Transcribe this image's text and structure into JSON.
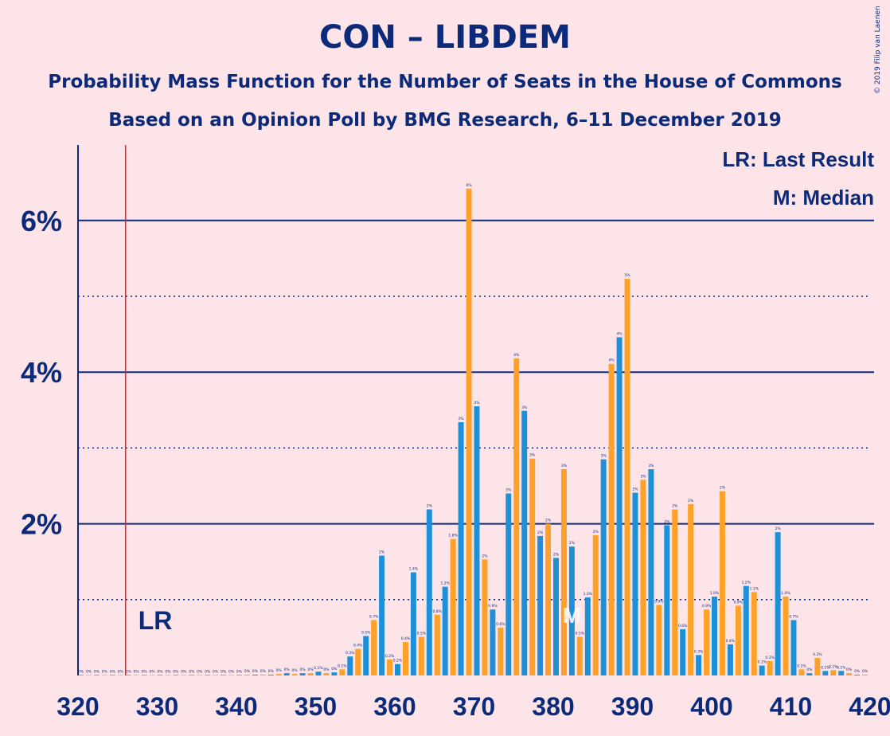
{
  "title": "CON – LIBDEM",
  "subtitle": "Probability Mass Function for the Number of Seats in the House of Commons",
  "subtitle2": "Based on an Opinion Poll by BMG Research, 6–11 December 2019",
  "copyright": "© 2019 Filip van Laenen",
  "legend": {
    "lr": "LR: Last Result",
    "m": "M: Median"
  },
  "markers": {
    "last_result_label": "LR",
    "median_label": "M"
  },
  "colors": {
    "blue": "#1e90d8",
    "orange": "#ffa028",
    "axis": "#0c2a7a",
    "lr_line": "#e8202c",
    "background": "#fde4e8"
  },
  "chart_data": {
    "type": "bar",
    "xlim": [
      320,
      420
    ],
    "ylim": [
      0,
      7
    ],
    "x_ticks": [
      320,
      330,
      340,
      350,
      360,
      370,
      380,
      390,
      400,
      410,
      420
    ],
    "y_ticks": [
      {
        "value": 2,
        "label": "2%"
      },
      {
        "value": 4,
        "label": "4%"
      },
      {
        "value": 6,
        "label": "6%"
      }
    ],
    "minor_gridlines": [
      1,
      3,
      5
    ],
    "last_result": 326,
    "median": 382,
    "x": [
      320,
      321,
      322,
      323,
      324,
      325,
      326,
      327,
      328,
      329,
      330,
      331,
      332,
      333,
      334,
      335,
      336,
      337,
      338,
      339,
      340,
      341,
      342,
      343,
      344,
      345,
      346,
      347,
      348,
      349,
      350,
      351,
      352,
      353,
      354,
      355,
      356,
      357,
      358,
      359,
      360,
      361,
      362,
      363,
      364,
      365,
      366,
      367,
      368,
      369,
      370,
      371,
      372,
      373,
      374,
      375,
      376,
      377,
      378,
      379,
      380,
      381,
      382,
      383,
      384,
      385,
      386,
      387,
      388,
      389,
      390,
      391,
      392,
      393,
      394,
      395,
      396,
      397,
      398,
      399,
      400,
      401,
      402,
      403,
      404,
      405,
      406,
      407,
      408,
      409,
      410,
      411,
      412,
      413,
      414,
      415,
      416,
      417,
      418,
      419
    ],
    "values": [
      0,
      0,
      0,
      0,
      0,
      0,
      0,
      0,
      0,
      0,
      0,
      0,
      0,
      0,
      0,
      0,
      0,
      0,
      0,
      0,
      0,
      0.01,
      0.01,
      0.01,
      0.01,
      0.02,
      0.03,
      0.02,
      0.03,
      0.03,
      0.05,
      0.03,
      0.04,
      0.08,
      0.25,
      0.35,
      0.52,
      0.73,
      1.58,
      0.21,
      0.15,
      0.44,
      1.36,
      0.51,
      2.19,
      0.8,
      1.17,
      1.8,
      3.34,
      6.42,
      3.55,
      1.53,
      0.87,
      0.63,
      2.4,
      4.18,
      3.49,
      2.86,
      1.84,
      2.0,
      1.55,
      2.72,
      1.7,
      0.51,
      1.03,
      1.85,
      2.85,
      4.11,
      4.46,
      5.23,
      2.41,
      2.58,
      2.72,
      0.93,
      1.98,
      2.19,
      0.61,
      2.26,
      0.27,
      0.87,
      1.04,
      2.43,
      0.41,
      0.92,
      1.18,
      1.1,
      0.13,
      0.19,
      1.89,
      1.04,
      0.73,
      0.08,
      0.03,
      0.23,
      0.06,
      0.07,
      0.06,
      0.03,
      0.01,
      0.01
    ],
    "data_labels": [
      "0%",
      "0%",
      "0%",
      "0%",
      "0%",
      "0%",
      "0%",
      "0%",
      "0%",
      "0%",
      "0%",
      "0%",
      "0%",
      "0%",
      "0%",
      "0%",
      "0%",
      "0%",
      "0%",
      "0%",
      "0%",
      "0%",
      "0%",
      "0%",
      "0%",
      "0%",
      "0%",
      "0%",
      "0%",
      "0%",
      "0.1%",
      "0%",
      "0%",
      "0.1%",
      "0.3%",
      "0.4%",
      "0.5%",
      "0.7%",
      "2%",
      "0.2%",
      "0.2%",
      "0.4%",
      "1.4%",
      "0.5%",
      "2%",
      "0.8%",
      "1.2%",
      "1.8%",
      "3%",
      "6%",
      "4%",
      "2%",
      "0.9%",
      "0.6%",
      "2%",
      "4%",
      "3%",
      "3%",
      "2%",
      "2%",
      "2%",
      "3%",
      "2%",
      "0.5%",
      "1.0%",
      "2%",
      "3%",
      "4%",
      "4%",
      "5%",
      "2%",
      "3%",
      "3%",
      "0.9%",
      "2%",
      "2%",
      "0.6%",
      "2%",
      "0.3%",
      "0.9%",
      "1.0%",
      "2%",
      "0.4%",
      "0.9%",
      "1.2%",
      "1.1%",
      "0.1%",
      "0.2%",
      "2%",
      "1.0%",
      "0.7%",
      "0.1%",
      "0%",
      "0.2%",
      "0.1%",
      "0.1%",
      "0.1%",
      "0%",
      "0%",
      "0%"
    ]
  }
}
